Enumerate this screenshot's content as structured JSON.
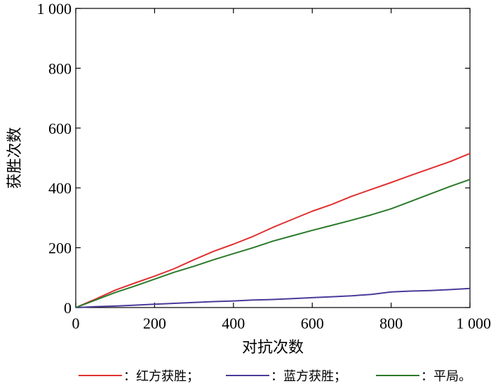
{
  "chart_data": {
    "type": "line",
    "xlabel": "对抗次数",
    "ylabel": "获胜次数",
    "xlim": [
      0,
      1000
    ],
    "ylim": [
      0,
      1000
    ],
    "xticks": [
      0,
      200,
      400,
      600,
      800,
      1000
    ],
    "xtick_labels": [
      "0",
      "200",
      "400",
      "600",
      "800",
      "1 000"
    ],
    "yticks": [
      0,
      200,
      400,
      600,
      800,
      1000
    ],
    "ytick_labels": [
      "0",
      "200",
      "400",
      "600",
      "800",
      "1 000"
    ],
    "grid": false,
    "legend_position": "bottom",
    "series": [
      {
        "name": "红方获胜",
        "legend_label": "：红方获胜；",
        "color": "#e03030",
        "x": [
          0,
          50,
          100,
          150,
          200,
          250,
          300,
          350,
          400,
          450,
          500,
          550,
          600,
          650,
          700,
          750,
          800,
          850,
          900,
          950,
          1000
        ],
        "y": [
          0,
          28,
          58,
          82,
          105,
          130,
          160,
          188,
          212,
          238,
          268,
          295,
          322,
          345,
          372,
          395,
          418,
          442,
          465,
          488,
          515
        ]
      },
      {
        "name": "蓝方获胜",
        "legend_label": "：蓝方获胜；",
        "color": "#4a3a9a",
        "x": [
          0,
          50,
          100,
          150,
          200,
          250,
          300,
          350,
          400,
          450,
          500,
          550,
          600,
          650,
          700,
          750,
          800,
          850,
          900,
          950,
          1000
        ],
        "y": [
          0,
          3,
          5,
          8,
          11,
          14,
          17,
          20,
          22,
          25,
          27,
          30,
          33,
          36,
          39,
          44,
          52,
          55,
          57,
          60,
          64
        ]
      },
      {
        "name": "平局",
        "legend_label": "：平局。",
        "color": "#2a7a2a",
        "x": [
          0,
          50,
          100,
          150,
          200,
          250,
          300,
          350,
          400,
          450,
          500,
          550,
          600,
          650,
          700,
          750,
          800,
          850,
          900,
          950,
          1000
        ],
        "y": [
          0,
          25,
          50,
          72,
          95,
          118,
          138,
          160,
          180,
          200,
          222,
          240,
          258,
          275,
          292,
          310,
          330,
          355,
          380,
          405,
          428
        ]
      }
    ]
  }
}
